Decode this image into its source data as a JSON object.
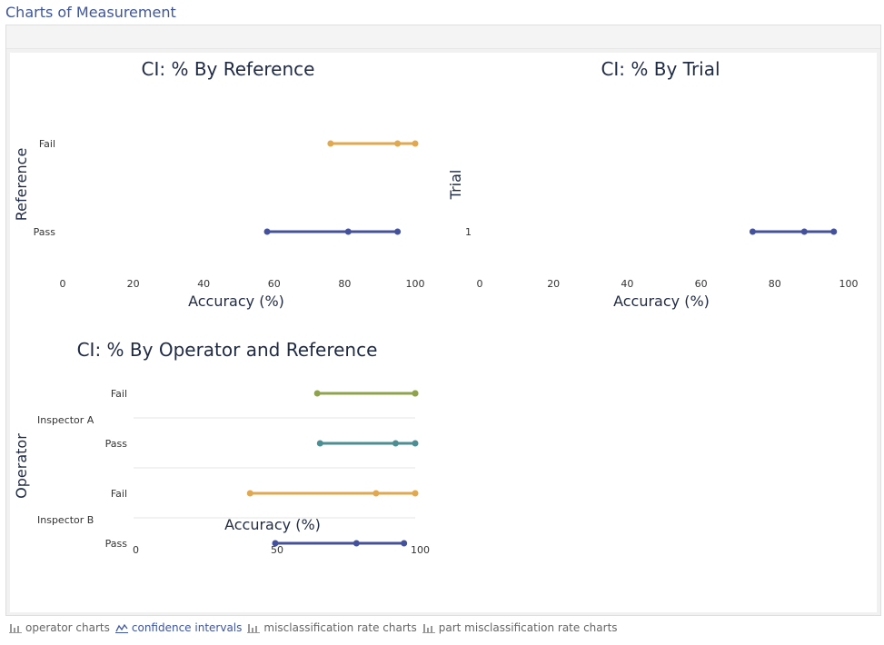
{
  "header": {
    "title": "Charts of Measurement"
  },
  "charts": [
    {
      "title": "CI: % By Reference",
      "xlabel": "Accuracy (%)",
      "ylabel": "Reference",
      "x_ticks": [
        "0",
        "20",
        "40",
        "60",
        "80",
        "100"
      ],
      "categories": [
        "Fail",
        "Pass"
      ]
    },
    {
      "title": "CI: % By Trial",
      "xlabel": "Accuracy (%)",
      "ylabel": "Trial",
      "x_ticks": [
        "0",
        "20",
        "40",
        "60",
        "80",
        "100"
      ],
      "categories": [
        "1"
      ]
    },
    {
      "title": "CI: % By Operator and Reference",
      "xlabel": "Accuracy (%)",
      "ylabel": "Operator",
      "x_ticks": [
        "0",
        "50",
        "100"
      ],
      "groups": [
        "Inspector A",
        "Inspector B"
      ],
      "categories": [
        "Fail",
        "Pass",
        "Fail",
        "Pass"
      ]
    }
  ],
  "chart_data": [
    {
      "type": "scatter",
      "title": "CI: % By Reference",
      "xlabel": "Accuracy (%)",
      "ylabel": "Reference",
      "xlim": [
        0,
        100
      ],
      "categories": [
        "Fail",
        "Pass"
      ],
      "intervals": [
        {
          "category": "Fail",
          "lower": 76,
          "estimate": 95,
          "upper": 100,
          "color": "#e0a84f"
        },
        {
          "category": "Pass",
          "lower": 58,
          "estimate": 81,
          "upper": 95,
          "color": "#44519c"
        }
      ]
    },
    {
      "type": "scatter",
      "title": "CI: % By Trial",
      "xlabel": "Accuracy (%)",
      "ylabel": "Trial",
      "xlim": [
        0,
        100
      ],
      "categories": [
        "1"
      ],
      "intervals": [
        {
          "category": "1",
          "lower": 74,
          "estimate": 88,
          "upper": 96,
          "color": "#44519c"
        }
      ]
    },
    {
      "type": "scatter",
      "title": "CI: % By Operator and Reference",
      "xlabel": "Accuracy (%)",
      "ylabel": "Operator",
      "xlim": [
        0,
        100
      ],
      "groups": [
        "Inspector A",
        "Inspector B"
      ],
      "categories": [
        "Fail",
        "Pass",
        "Fail",
        "Pass"
      ],
      "intervals": [
        {
          "group": "Inspector A",
          "category": "Fail",
          "lower": 65,
          "estimate": 100,
          "upper": 100,
          "color": "#8fa34d"
        },
        {
          "group": "Inspector A",
          "category": "Pass",
          "lower": 66,
          "estimate": 93,
          "upper": 100,
          "color": "#4b8e93"
        },
        {
          "group": "Inspector B",
          "category": "Fail",
          "lower": 41,
          "estimate": 86,
          "upper": 100,
          "color": "#e0a84f"
        },
        {
          "group": "Inspector B",
          "category": "Pass",
          "lower": 50,
          "estimate": 79,
          "upper": 96,
          "color": "#44519c"
        }
      ]
    }
  ],
  "footer": {
    "items": [
      {
        "label": "operator charts",
        "icon": "bar-chart-icon",
        "active": false
      },
      {
        "label": "confidence intervals",
        "icon": "ci-chart-icon",
        "active": true
      },
      {
        "label": "misclassification rate charts",
        "icon": "bar-chart-icon",
        "active": false
      },
      {
        "label": "part misclassification rate charts",
        "icon": "bar-chart-icon",
        "active": false
      }
    ]
  }
}
